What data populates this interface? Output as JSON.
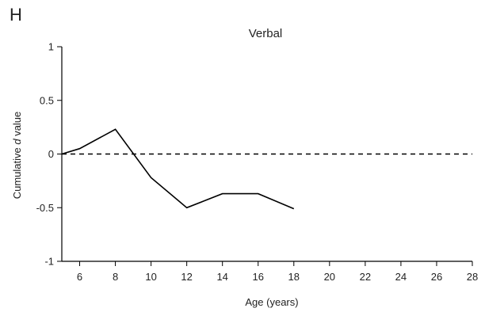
{
  "panel_label": "H",
  "chart_data": {
    "type": "line",
    "title": "Verbal",
    "xlabel": "Age (years)",
    "ylabel_prefix": "Cumulative ",
    "ylabel_italic": "d",
    "ylabel_suffix": " value",
    "xlim": [
      5,
      28
    ],
    "ylim": [
      -1,
      1
    ],
    "x_ticks": [
      6,
      8,
      10,
      12,
      14,
      16,
      18,
      20,
      22,
      24,
      26,
      28
    ],
    "x_tick_labels": [
      "6",
      "8",
      "10",
      "12",
      "14",
      "16",
      "18",
      "20",
      "22",
      "24",
      "26",
      "28"
    ],
    "y_ticks": [
      1,
      0.5,
      0,
      -0.5,
      -1
    ],
    "y_tick_labels": [
      "1",
      "0.5",
      "0",
      "-0.5",
      "-1"
    ],
    "reference_line": {
      "y": 0,
      "style": "dashed"
    },
    "grid": false,
    "legend": "none",
    "series": [
      {
        "color": "#000000",
        "x": [
          5,
          6,
          8,
          10,
          12,
          14,
          16,
          18
        ],
        "y": [
          0.0,
          0.05,
          0.23,
          -0.22,
          -0.5,
          -0.37,
          -0.37,
          -0.51
        ]
      }
    ]
  }
}
